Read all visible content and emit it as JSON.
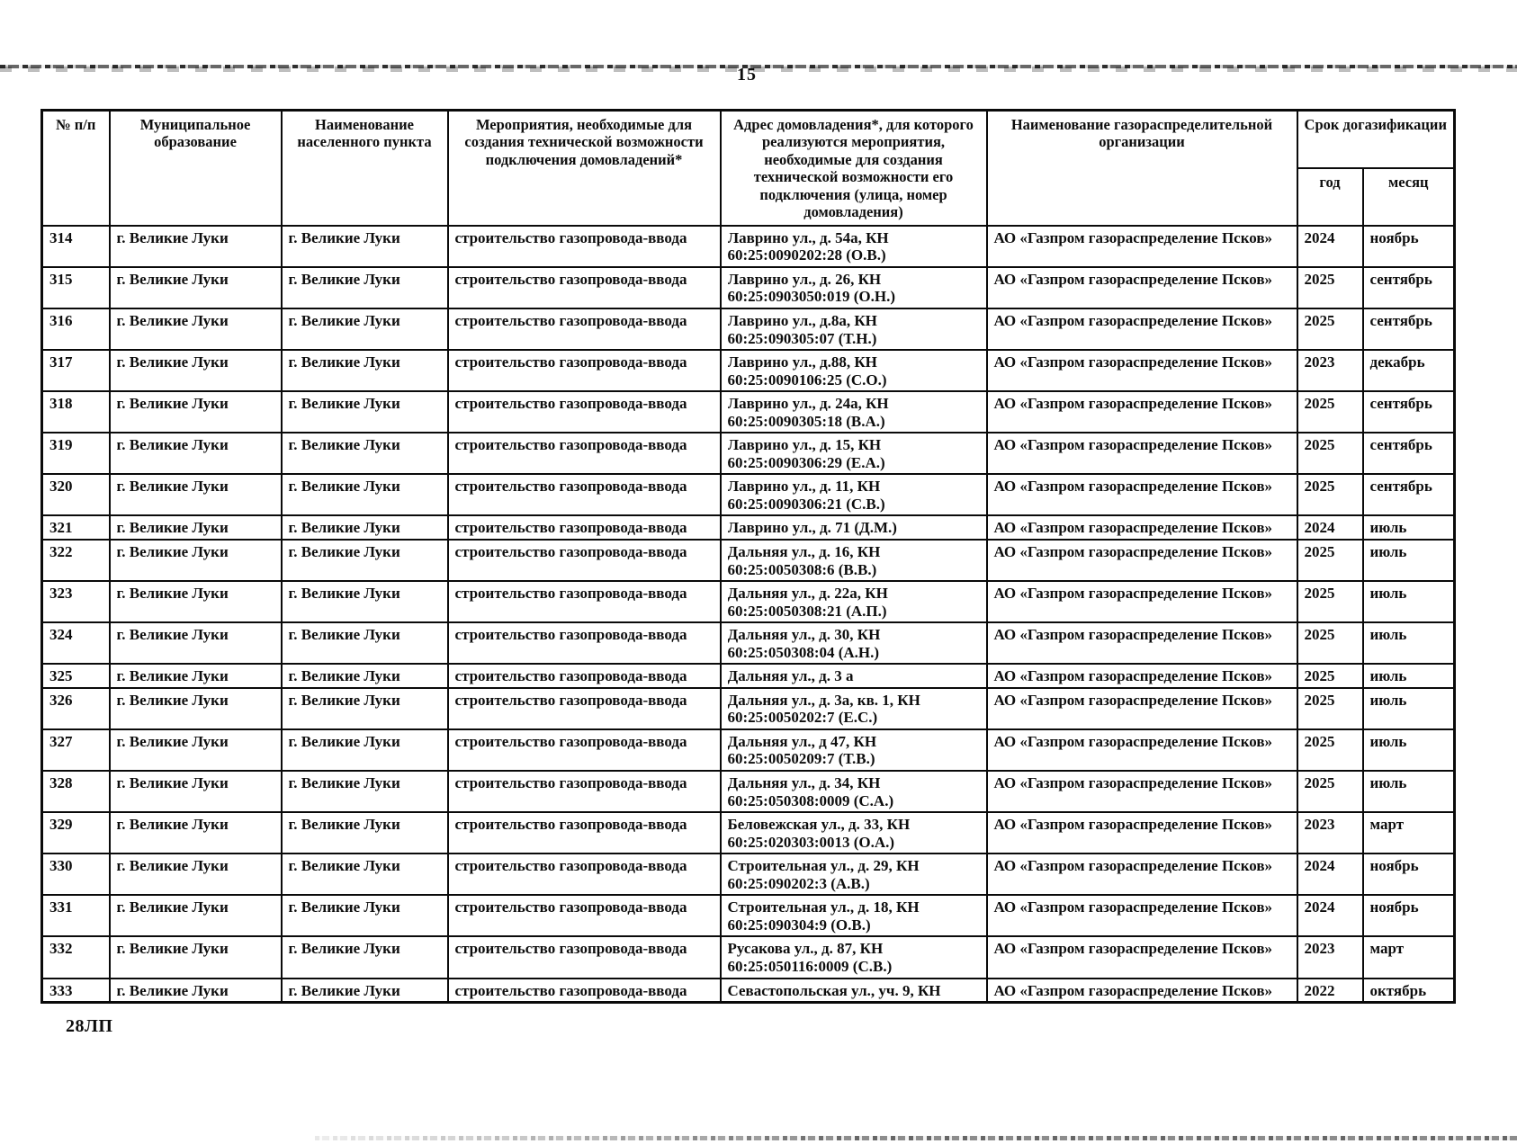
{
  "page": {
    "number": "15",
    "footer_code": "28ЛП"
  },
  "colors": {
    "ink": "#0d0d0d",
    "paper": "#ffffff"
  },
  "table": {
    "headers": {
      "num": "№ п/п",
      "municipality": "Муниципальное образование",
      "settlement": "Наименование населенного пункта",
      "measures": "Мероприятия, необходимые для создания технической возможности подключения домовладений*",
      "address": "Адрес домовладения*, для которого реализуются мероприятия, необходимые для создания технической возможности его подключения (улица, номер домовладения)",
      "organization": "Наименование газораспределительной организации",
      "deadline_group": "Срок догазификации",
      "year": "год",
      "month": "месяц"
    },
    "rows": [
      {
        "num": "314",
        "municipality": "г. Великие Луки",
        "settlement": "г. Великие Луки",
        "measures": "строительство газопровода-ввода",
        "address_lines": [
          "Лаврино ул., д. 54а, КН",
          "60:25:0090202:28 (О.В.)"
        ],
        "organization": "АО «Газпром газораспределение Псков»",
        "year": "2024",
        "month": "ноябрь"
      },
      {
        "num": "315",
        "municipality": "г. Великие Луки",
        "settlement": "г. Великие Луки",
        "measures": "строительство газопровода-ввода",
        "address_lines": [
          "Лаврино ул., д. 26, КН",
          "60:25:0903050:019 (О.Н.)"
        ],
        "organization": "АО «Газпром газораспределение Псков»",
        "year": "2025",
        "month": "сентябрь"
      },
      {
        "num": "316",
        "municipality": "г. Великие Луки",
        "settlement": "г. Великие Луки",
        "measures": "строительство газопровода-ввода",
        "address_lines": [
          "Лаврино ул., д.8а, КН",
          "60:25:090305:07 (Т.Н.)"
        ],
        "organization": "АО «Газпром газораспределение Псков»",
        "year": "2025",
        "month": "сентябрь"
      },
      {
        "num": "317",
        "municipality": "г. Великие Луки",
        "settlement": "г. Великие Луки",
        "measures": "строительство газопровода-ввода",
        "address_lines": [
          "Лаврино ул., д.88, КН",
          "60:25:0090106:25 (С.О.)"
        ],
        "organization": "АО «Газпром газораспределение Псков»",
        "year": "2023",
        "month": "декабрь"
      },
      {
        "num": "318",
        "municipality": "г. Великие Луки",
        "settlement": "г. Великие Луки",
        "measures": "строительство газопровода-ввода",
        "address_lines": [
          "Лаврино ул., д. 24а, КН",
          "60:25:0090305:18 (В.А.)"
        ],
        "organization": "АО «Газпром газораспределение Псков»",
        "year": "2025",
        "month": "сентябрь"
      },
      {
        "num": "319",
        "municipality": "г. Великие Луки",
        "settlement": "г. Великие Луки",
        "measures": "строительство газопровода-ввода",
        "address_lines": [
          "Лаврино ул., д. 15, КН",
          "60:25:0090306:29 (Е.А.)"
        ],
        "organization": "АО «Газпром газораспределение Псков»",
        "year": "2025",
        "month": "сентябрь"
      },
      {
        "num": "320",
        "municipality": "г. Великие Луки",
        "settlement": "г. Великие Луки",
        "measures": "строительство газопровода-ввода",
        "address_lines": [
          "Лаврино ул., д. 11, КН",
          "60:25:0090306:21 (С.В.)"
        ],
        "organization": "АО «Газпром газораспределение Псков»",
        "year": "2025",
        "month": "сентябрь"
      },
      {
        "num": "321",
        "municipality": "г. Великие Луки",
        "settlement": "г. Великие Луки",
        "measures": "строительство газопровода-ввода",
        "address_lines": [
          "Лаврино ул., д. 71 (Д.М.)"
        ],
        "organization": "АО «Газпром газораспределение Псков»",
        "year": "2024",
        "month": "июль"
      },
      {
        "num": "322",
        "municipality": "г. Великие Луки",
        "settlement": "г. Великие Луки",
        "measures": "строительство газопровода-ввода",
        "address_lines": [
          "Дальняя ул., д. 16, КН",
          "60:25:0050308:6 (В.В.)"
        ],
        "organization": "АО «Газпром газораспределение Псков»",
        "year": "2025",
        "month": "июль"
      },
      {
        "num": "323",
        "municipality": "г. Великие Луки",
        "settlement": "г. Великие Луки",
        "measures": "строительство газопровода-ввода",
        "address_lines": [
          "Дальняя ул., д. 22а, КН",
          "60:25:0050308:21 (А.П.)"
        ],
        "organization": "АО «Газпром газораспределение Псков»",
        "year": "2025",
        "month": "июль"
      },
      {
        "num": "324",
        "municipality": "г. Великие Луки",
        "settlement": "г. Великие Луки",
        "measures": "строительство газопровода-ввода",
        "address_lines": [
          "Дальняя ул., д. 30, КН",
          "60:25:050308:04 (А.Н.)"
        ],
        "organization": "АО «Газпром газораспределение Псков»",
        "year": "2025",
        "month": "июль"
      },
      {
        "num": "325",
        "municipality": "г. Великие Луки",
        "settlement": "г. Великие Луки",
        "measures": "строительство газопровода-ввода",
        "address_lines": [
          "Дальняя ул., д. 3 а"
        ],
        "organization": "АО «Газпром газораспределение Псков»",
        "year": "2025",
        "month": "июль"
      },
      {
        "num": "326",
        "municipality": "г. Великие Луки",
        "settlement": "г. Великие Луки",
        "measures": "строительство газопровода-ввода",
        "address_lines": [
          "Дальняя ул., д. 3а, кв. 1, КН",
          "60:25:0050202:7 (Е.С.)"
        ],
        "organization": "АО «Газпром газораспределение Псков»",
        "year": "2025",
        "month": "июль"
      },
      {
        "num": "327",
        "municipality": "г. Великие Луки",
        "settlement": "г. Великие Луки",
        "measures": "строительство газопровода-ввода",
        "address_lines": [
          "Дальняя ул., д 47, КН",
          "60:25:0050209:7 (Т.В.)"
        ],
        "organization": "АО «Газпром газораспределение Псков»",
        "year": "2025",
        "month": "июль"
      },
      {
        "num": "328",
        "municipality": "г. Великие Луки",
        "settlement": "г. Великие Луки",
        "measures": "строительство газопровода-ввода",
        "address_lines": [
          "Дальняя ул., д. 34, КН",
          "60:25:050308:0009 (С.А.)"
        ],
        "organization": "АО «Газпром газораспределение Псков»",
        "year": "2025",
        "month": "июль"
      },
      {
        "num": "329",
        "municipality": "г. Великие Луки",
        "settlement": "г. Великие Луки",
        "measures": "строительство газопровода-ввода",
        "address_lines": [
          "Беловежская ул., д. 33, КН",
          "60:25:020303:0013 (О.А.)"
        ],
        "organization": "АО «Газпром газораспределение Псков»",
        "year": "2023",
        "month": "март"
      },
      {
        "num": "330",
        "municipality": "г. Великие Луки",
        "settlement": "г. Великие Луки",
        "measures": "строительство газопровода-ввода",
        "address_lines": [
          "Строительная ул., д. 29, КН",
          "60:25:090202:3 (А.В.)"
        ],
        "organization": "АО «Газпром газораспределение Псков»",
        "year": "2024",
        "month": "ноябрь"
      },
      {
        "num": "331",
        "municipality": "г. Великие Луки",
        "settlement": "г. Великие Луки",
        "measures": "строительство газопровода-ввода",
        "address_lines": [
          "Строительная ул., д. 18, КН",
          "60:25:090304:9 (О.В.)"
        ],
        "organization": "АО «Газпром газораспределение Псков»",
        "year": "2024",
        "month": "ноябрь"
      },
      {
        "num": "332",
        "municipality": "г. Великие Луки",
        "settlement": "г. Великие Луки",
        "measures": "строительство газопровода-ввода",
        "address_lines": [
          "Русакова ул., д. 87, КН",
          "60:25:050116:0009 (С.В.)"
        ],
        "organization": "АО «Газпром газораспределение Псков»",
        "year": "2023",
        "month": "март"
      },
      {
        "num": "333",
        "municipality": "г. Великие Луки",
        "settlement": "г. Великие Луки",
        "measures": "строительство газопровода-ввода",
        "address_lines": [
          "Севастопольская ул., уч. 9, КН"
        ],
        "organization": "АО «Газпром газораспределение Псков»",
        "year": "2022",
        "month": "октябрь"
      }
    ]
  }
}
